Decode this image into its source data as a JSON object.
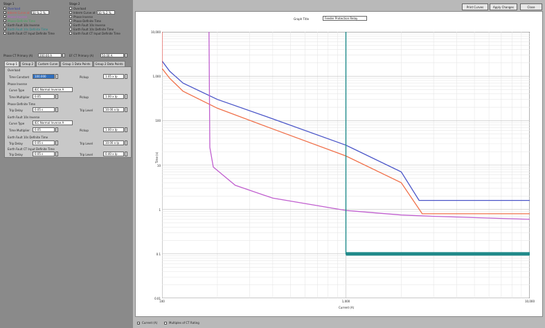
{
  "left_panel": {
    "groups": [
      {
        "title": "Stage 1",
        "items": [
          {
            "label": "Overload",
            "checked": true,
            "color": "#2e3a9c"
          },
          {
            "label": "Interm Curve at",
            "checked": true,
            "color": "#e0544e",
            "value": "50 % 2 %"
          },
          {
            "label": "Phase Inverse",
            "checked": true,
            "color": "#c05fcf"
          },
          {
            "label": "Phase Definite Time",
            "checked": true,
            "color": "#3ea45a"
          },
          {
            "label": "Earth Fault 10s Inverse",
            "checked": false,
            "color": "#222222"
          },
          {
            "label": "Earth Fault 10s Definite Time",
            "checked": true,
            "color": "#1f8a8a"
          },
          {
            "label": "Earth Fault CT Input Definite Time",
            "checked": false,
            "color": "#222222"
          }
        ]
      },
      {
        "title": "Stage 2",
        "items": [
          {
            "label": "Overload",
            "checked": false,
            "color": "#222222"
          },
          {
            "label": "Interm Curve at",
            "checked": false,
            "color": "#222222",
            "value": "50 % 2 %"
          },
          {
            "label": "Phase Inverse",
            "checked": false,
            "color": "#222222"
          },
          {
            "label": "Phase Definite Time",
            "checked": false,
            "color": "#222222"
          },
          {
            "label": "Earth Fault 10s Inverse",
            "checked": false,
            "color": "#222222"
          },
          {
            "label": "Earth Fault 10s Definite Time",
            "checked": false,
            "color": "#222222"
          },
          {
            "label": "Earth Fault CT Input Definite Time",
            "checked": false,
            "color": "#222222"
          }
        ]
      }
    ],
    "ct_primary": {
      "label": "Phase CT Primary (A)",
      "value": "200.00 A"
    },
    "ef_ct_primary": {
      "label": "EF CT Primary (A)",
      "value": "50.00 A"
    },
    "tabs": [
      {
        "label": "Group 1",
        "active": true
      },
      {
        "label": "Group 2",
        "active": false
      },
      {
        "label": "Custom Curve",
        "active": false
      },
      {
        "label": "Group 1 Data Points",
        "active": false
      },
      {
        "label": "Group 2 Data Points",
        "active": false
      }
    ],
    "sections": {
      "overload": {
        "title": "Overload",
        "time_constant_label": "Time Constant",
        "time_constant_value": "100.000",
        "pickup_label": "Pickup",
        "pickup_value": "1.05 x Ip"
      },
      "phase_inverse": {
        "title": "Phase Inverse",
        "curve_type_label": "Curve Type",
        "curve_type_value": "IEC Normal Inverse A",
        "time_mult_label": "Time Multiplier",
        "time_mult_value": "0.05",
        "pickup_label": "Pickup",
        "pickup_value": "1.00 x Ip"
      },
      "phase_definite": {
        "title": "Phase Definite Time",
        "trip_delay_label": "Trip Delay",
        "trip_delay_value": "0.05 s",
        "trip_level_label": "Trip Level",
        "trip_level_value": "10.00 x Ip"
      },
      "ef_inverse": {
        "title": "Earth Fault 10s Inverse",
        "curve_type_label": "Curve Type",
        "curve_type_value": "IEC Normal Inverse A",
        "time_mult_label": "Time Multiplier",
        "time_mult_value": "0.05",
        "pickup_label": "Pickup",
        "pickup_value": "1.00 x Ip"
      },
      "ef_definite": {
        "title": "Earth Fault 10s Definite Time",
        "trip_delay_label": "Trip Delay",
        "trip_delay_value": "0.05 s",
        "trip_level_label": "Trip Level",
        "trip_level_value": "10.00 x Ip"
      },
      "ef_ct": {
        "title": "Earth Fault CT Input Definite Time",
        "trip_delay_label": "Trip Delay",
        "trip_delay_value": "0.05 s",
        "trip_level_label": "Trip Level",
        "trip_level_value": "0.40 x Ip"
      }
    }
  },
  "toolbar": {
    "print_label": "Print Curves",
    "apply_label": "Apply Changes",
    "close_label": "Close"
  },
  "graph": {
    "title_label": "Graph Title",
    "title_value": "Feeder Protection Relay"
  },
  "bottom": {
    "current_label": "Current (A)",
    "multiples_label": "Multiples of CT Rating"
  },
  "chart_data": {
    "type": "line",
    "xscale": "log",
    "yscale": "log",
    "xlabel": "Current (A)",
    "ylabel": "Time (s)",
    "xlim": [
      100,
      10000
    ],
    "ylim": [
      0.01,
      10000
    ],
    "x_ticks": [
      "100",
      "1,000",
      "10,000"
    ],
    "y_ticks": [
      "10,000",
      "1,000",
      "100",
      "10",
      "1",
      "0.1",
      "0.01"
    ],
    "series": [
      {
        "color": "#4a55c8",
        "x": [
          100,
          110,
          130,
          200,
          400,
          1000,
          2000,
          2500,
          10000
        ],
        "y": [
          2200,
          1300,
          700,
          300,
          110,
          28,
          7,
          1.6,
          1.6
        ]
      },
      {
        "color": "#f0704a",
        "x": [
          100,
          110,
          130,
          200,
          400,
          1000,
          2000,
          2600,
          10000
        ],
        "y": [
          1500,
          900,
          460,
          190,
          65,
          16,
          4,
          0.8,
          0.8
        ]
      },
      {
        "color": "#c05fcf",
        "x": [
          180,
          182,
          190,
          250,
          400,
          1000,
          2000,
          3000,
          10000
        ],
        "y": [
          10000,
          25,
          9,
          3.5,
          1.8,
          0.95,
          0.75,
          0.7,
          0.6
        ]
      },
      {
        "color": "#1f8a8a",
        "x": [
          1000,
          1000,
          10000
        ],
        "y": [
          10000,
          0.1,
          0.1
        ]
      },
      {
        "color": "#e0544e",
        "x": [
          100,
          100
        ],
        "y": [
          10000,
          1600
        ]
      }
    ]
  }
}
